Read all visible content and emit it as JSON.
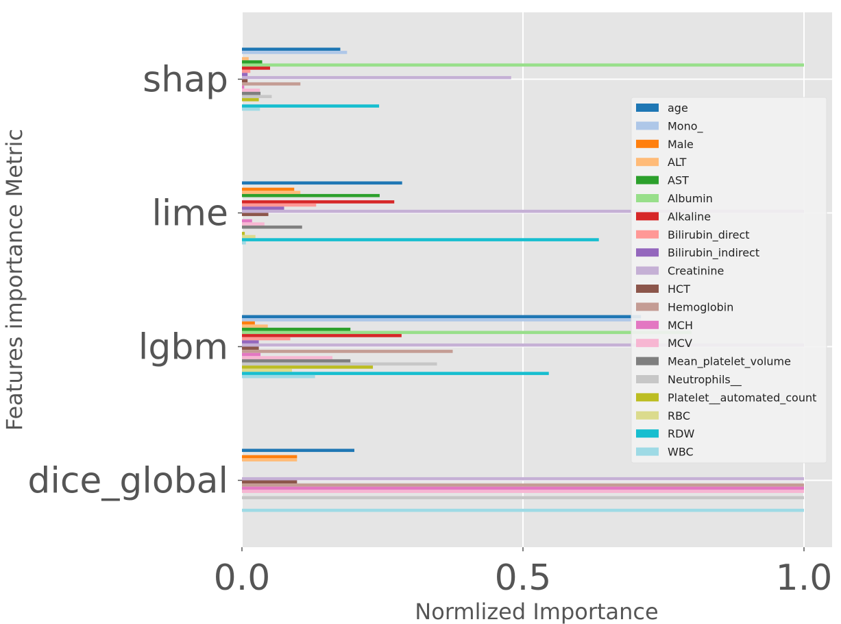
{
  "chart_data": {
    "type": "bar",
    "orientation": "horizontal",
    "xlabel": "Normlized Importance",
    "ylabel": "Features importance Metric",
    "xlim": [
      0,
      1.05
    ],
    "xticks": [
      "0.0",
      "0.5",
      "1.0"
    ],
    "grid": true,
    "legend_position": "right",
    "categories": [
      "shap",
      "lime",
      "lgbm",
      "dice_global"
    ],
    "series": [
      {
        "name": "age",
        "color": "#1f77b4",
        "values": [
          0.175,
          0.285,
          0.71,
          0.2
        ]
      },
      {
        "name": "Mono_",
        "color": "#aec7e8",
        "values": [
          0.187,
          0.0,
          0.71,
          0.0
        ]
      },
      {
        "name": "Male",
        "color": "#ff7f0e",
        "values": [
          0.0,
          0.093,
          0.023,
          0.098
        ]
      },
      {
        "name": "ALT",
        "color": "#ffbb78",
        "values": [
          0.012,
          0.104,
          0.046,
          0.098
        ]
      },
      {
        "name": "AST",
        "color": "#2ca02c",
        "values": [
          0.036,
          0.245,
          0.193,
          0.0
        ]
      },
      {
        "name": "Albumin",
        "color": "#98df8a",
        "values": [
          1.0,
          0.0,
          0.8,
          0.0
        ]
      },
      {
        "name": "Alkaline",
        "color": "#d62728",
        "values": [
          0.05,
          0.271,
          0.284,
          0.0
        ]
      },
      {
        "name": "Bilirubin_direct",
        "color": "#ff9896",
        "values": [
          0.015,
          0.132,
          0.086,
          0.0
        ]
      },
      {
        "name": "Bilirubin_indirect",
        "color": "#9467bd",
        "values": [
          0.01,
          0.075,
          0.03,
          0.0
        ]
      },
      {
        "name": "Creatinine",
        "color": "#c5b0d5",
        "values": [
          0.479,
          1.0,
          1.0,
          1.0
        ]
      },
      {
        "name": "HCT",
        "color": "#8c564b",
        "values": [
          0.01,
          0.047,
          0.03,
          0.098
        ]
      },
      {
        "name": "Hemoglobin",
        "color": "#c49c94",
        "values": [
          0.104,
          0.0,
          0.375,
          1.0
        ]
      },
      {
        "name": "MCH",
        "color": "#e377c2",
        "values": [
          0.004,
          0.018,
          0.033,
          1.0
        ]
      },
      {
        "name": "MCV",
        "color": "#f7b6d2",
        "values": [
          0.032,
          0.04,
          0.161,
          1.0
        ]
      },
      {
        "name": "Mean_platelet_volume",
        "color": "#7f7f7f",
        "values": [
          0.033,
          0.107,
          0.193,
          0.0
        ]
      },
      {
        "name": "Neutrophils__",
        "color": "#c7c7c7",
        "values": [
          0.053,
          0.0,
          0.347,
          1.0
        ]
      },
      {
        "name": "Platelet__automated_count",
        "color": "#bcbd22",
        "values": [
          0.03,
          0.005,
          0.233,
          0.0
        ]
      },
      {
        "name": "RBC",
        "color": "#dbdb8d",
        "values": [
          0.0,
          0.024,
          0.089,
          0.0
        ]
      },
      {
        "name": "RDW",
        "color": "#17becf",
        "values": [
          0.244,
          0.635,
          0.546,
          0.0
        ]
      },
      {
        "name": "WBC",
        "color": "#9edae5",
        "values": [
          0.032,
          0.007,
          0.13,
          1.0
        ]
      }
    ]
  }
}
